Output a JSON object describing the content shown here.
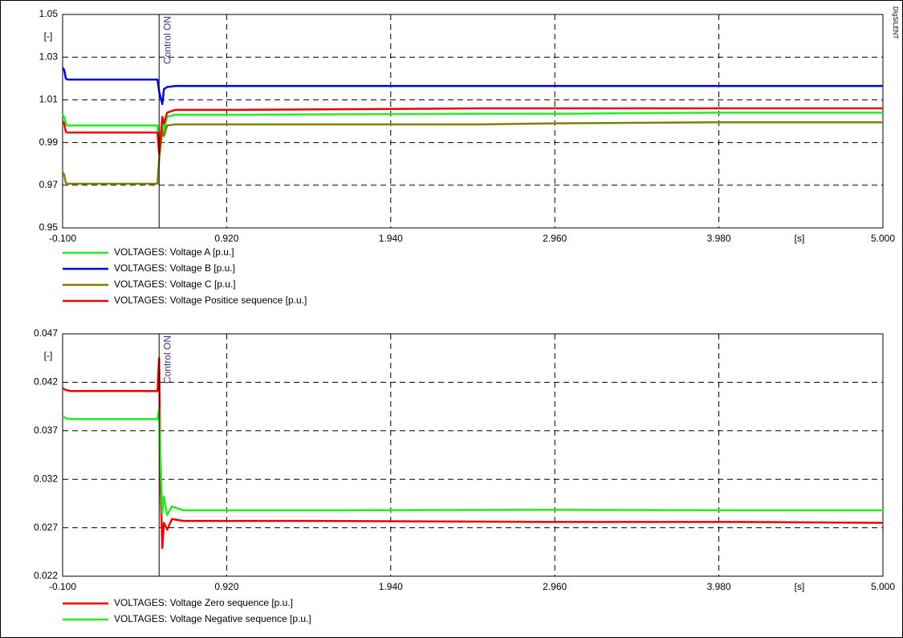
{
  "watermark": "DIgSILENT",
  "chart_data": [
    {
      "type": "line",
      "y_unit": "[-]",
      "x_unit": "[s]",
      "annotation": {
        "text": "Control ON",
        "x": 0.5
      },
      "xlim": [
        -0.1,
        5.0
      ],
      "xticks": [
        {
          "value": -0.1,
          "label": "-0.100"
        },
        {
          "value": 0.92,
          "label": "0.920"
        },
        {
          "value": 1.94,
          "label": "1.940"
        },
        {
          "value": 2.96,
          "label": "2.960"
        },
        {
          "value": 3.98,
          "label": "3.980"
        },
        {
          "value": 5.0,
          "label": "5.000"
        }
      ],
      "ylim": [
        0.95,
        1.05
      ],
      "yticks": [
        1.05,
        1.03,
        1.01,
        0.99,
        0.97,
        0.95
      ],
      "grid": true,
      "x": [
        -0.1,
        -0.09,
        -0.08,
        -0.07,
        0.49,
        0.5,
        0.52,
        0.53,
        0.55,
        0.6,
        1.0,
        2.5,
        3.0,
        4.0,
        5.0
      ],
      "series": [
        {
          "name": "VOLTAGES: Voltage A [p.u.]",
          "color": "#22ee22",
          "values": [
            1.003,
            1.002,
            0.999,
            0.998,
            0.998,
            0.984,
            1.001,
            0.996,
            1.002,
            1.003,
            1.003,
            1.0035,
            1.0035,
            1.004,
            1.004
          ]
        },
        {
          "name": "VOLTAGES: Voltage B [p.u.]",
          "color": "#0000e0",
          "values": [
            1.025,
            1.024,
            1.02,
            1.0195,
            1.0195,
            1.014,
            1.008,
            1.015,
            1.016,
            1.0165,
            1.0165,
            1.0165,
            1.0165,
            1.0165,
            1.0165
          ]
        },
        {
          "name": "VOLTAGES: Voltage C [p.u.]",
          "color": "#808000",
          "values": [
            0.976,
            0.975,
            0.971,
            0.9707,
            0.9707,
            0.982,
            0.996,
            0.993,
            0.998,
            0.9985,
            0.9985,
            0.9985,
            0.999,
            0.9995,
            0.9995
          ]
        },
        {
          "name": "VOLTAGES: Voltage Positice sequence [p.u.]",
          "color": "#ee0000",
          "values": [
            1.0,
            0.999,
            0.995,
            0.9947,
            0.9947,
            0.985,
            1.002,
            0.999,
            1.004,
            1.0053,
            1.0053,
            1.006,
            1.006,
            1.006,
            1.006
          ]
        }
      ]
    },
    {
      "type": "line",
      "y_unit": "[-]",
      "x_unit": "[s]",
      "annotation": {
        "text": "Control ON",
        "x": 0.5
      },
      "xlim": [
        -0.1,
        5.0
      ],
      "xticks": [
        {
          "value": -0.1,
          "label": "-0.100"
        },
        {
          "value": 0.92,
          "label": "0.920"
        },
        {
          "value": 1.94,
          "label": "1.940"
        },
        {
          "value": 2.96,
          "label": "2.960"
        },
        {
          "value": 3.98,
          "label": "3.980"
        },
        {
          "value": 5.0,
          "label": "5.000"
        }
      ],
      "ylim": [
        0.022,
        0.047
      ],
      "yticks": [
        0.047,
        0.042,
        0.037,
        0.032,
        0.027,
        0.022
      ],
      "grid": true,
      "x": [
        -0.1,
        -0.08,
        -0.05,
        0.49,
        0.5,
        0.51,
        0.52,
        0.53,
        0.55,
        0.58,
        0.65,
        1.0,
        1.5,
        2.9,
        4.1,
        5.0
      ],
      "series": [
        {
          "name": "VOLTAGES: Voltage Zero sequence [p.u.]",
          "color": "#ee0000",
          "values": [
            0.0414,
            0.0412,
            0.0411,
            0.0411,
            0.0445,
            0.031,
            0.0249,
            0.0275,
            0.0268,
            0.0279,
            0.0277,
            0.0277,
            0.0277,
            0.0276,
            0.0276,
            0.0275
          ]
        },
        {
          "name": "VOLTAGES: Voltage Negative sequence [p.u.]",
          "color": "#22ee22",
          "values": [
            0.0385,
            0.0383,
            0.0382,
            0.0382,
            0.0392,
            0.0335,
            0.0285,
            0.0302,
            0.0283,
            0.0292,
            0.0288,
            0.0288,
            0.0288,
            0.02885,
            0.0288,
            0.0288
          ]
        }
      ]
    }
  ]
}
